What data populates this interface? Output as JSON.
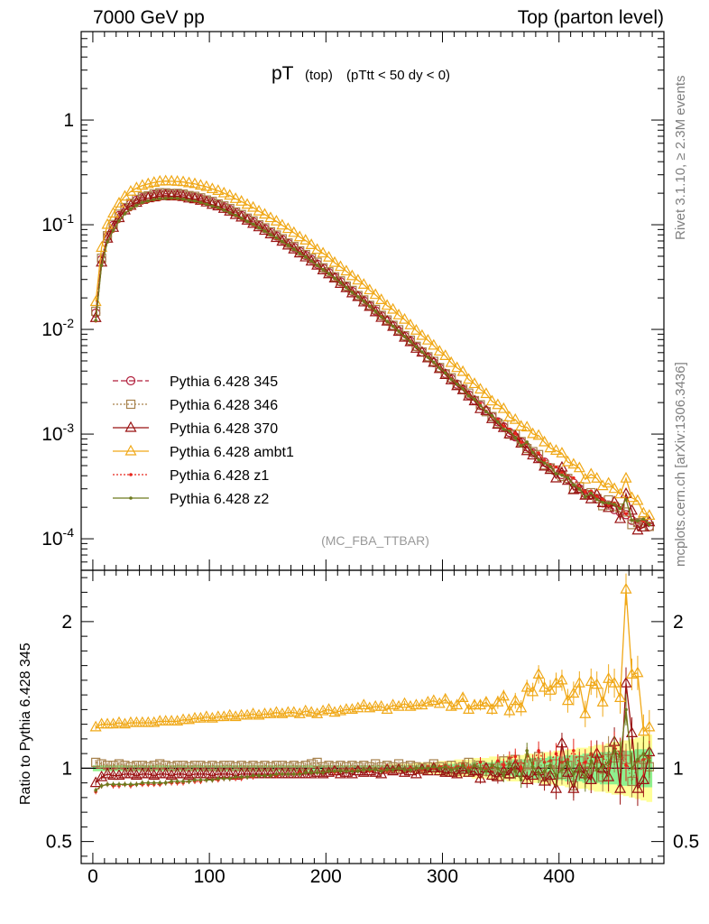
{
  "header": {
    "left": "7000 GeV pp",
    "right": "Top (parton level)"
  },
  "sidebar": {
    "rivet": "Rivet 3.1.10, ≥ 2.3M events",
    "mcplots": "mcplots.cern.ch [arXiv:1306.3436]"
  },
  "plot_title": {
    "main": "pT",
    "sub": "(top)",
    "cut": "(pTtt < 50 dy < 0)"
  },
  "analysis_label": "(MC_FBA_TTBAR)",
  "ratio_ylabel": "Ratio to Pythia 6.428 345",
  "colors": {
    "p345": "#b01e3b",
    "p346": "#a6804a",
    "p370": "#991212",
    "ambt1": "#f0a817",
    "z1": "#e8251c",
    "z2": "#6e7a1e",
    "band_inner": "#8ef08e",
    "band_outer": "#ffff99"
  },
  "chart_data": {
    "type": "line",
    "x_centers": [
      2.5,
      7.5,
      12.5,
      17.5,
      22.5,
      27.5,
      32.5,
      37.5,
      42.5,
      47.5,
      52.5,
      57.5,
      62.5,
      67.5,
      72.5,
      77.5,
      82.5,
      87.5,
      92.5,
      97.5,
      102.5,
      107.5,
      112.5,
      117.5,
      122.5,
      127.5,
      132.5,
      137.5,
      142.5,
      147.5,
      152.5,
      157.5,
      162.5,
      167.5,
      172.5,
      177.5,
      182.5,
      187.5,
      192.5,
      197.5,
      202.5,
      207.5,
      212.5,
      217.5,
      222.5,
      227.5,
      232.5,
      237.5,
      242.5,
      247.5,
      252.5,
      257.5,
      262.5,
      267.5,
      272.5,
      277.5,
      282.5,
      287.5,
      292.5,
      297.5,
      302.5,
      307.5,
      312.5,
      317.5,
      322.5,
      327.5,
      332.5,
      337.5,
      342.5,
      347.5,
      352.5,
      357.5,
      362.5,
      367.5,
      372.5,
      377.5,
      382.5,
      387.5,
      392.5,
      397.5,
      402.5,
      407.5,
      412.5,
      417.5,
      422.5,
      427.5,
      432.5,
      437.5,
      442.5,
      447.5,
      452.5,
      457.5,
      462.5,
      467.5,
      472.5,
      477.5
    ],
    "reference_series": "Pythia 6.428 345",
    "reference_values": [
      0.01432,
      0.04643,
      0.07698,
      0.09869,
      0.1223,
      0.1432,
      0.1584,
      0.1712,
      0.1808,
      0.187,
      0.1929,
      0.1963,
      0.1976,
      0.197,
      0.1957,
      0.1925,
      0.1881,
      0.1831,
      0.1772,
      0.1707,
      0.1638,
      0.1565,
      0.1483,
      0.1398,
      0.131,
      0.1226,
      0.1145,
      0.1066,
      0.09884,
      0.09152,
      0.08469,
      0.07816,
      0.072,
      0.06625,
      0.06074,
      0.05563,
      0.05098,
      0.0465,
      0.04216,
      0.03839,
      0.03482,
      0.03142,
      0.0285,
      0.02567,
      0.02311,
      0.02087,
      0.01875,
      0.01681,
      0.01508,
      0.01348,
      0.01206,
      0.01084,
      0.00963,
      0.00863,
      0.00774,
      0.00683,
      0.00609,
      0.00542,
      0.00481,
      0.00428,
      0.0038,
      0.00338,
      0.003,
      0.00266,
      0.00237,
      0.00211,
      0.00187,
      0.00167,
      0.00147,
      0.00131,
      0.00117,
      0.00104,
      0.00094,
      0.00084,
      0.00075,
      0.00066,
      0.00059,
      0.00054,
      0.00048,
      0.00044,
      0.00041,
      0.00037,
      0.00034,
      0.0003,
      0.00027,
      0.00026,
      0.00024,
      0.00022,
      0.00021,
      0.00019,
      0.00018,
      0.00017,
      0.00015,
      0.00014,
      0.00014,
      0.00013
    ],
    "ratio_band_inner": [
      0.02,
      0.02,
      0.02,
      0.02,
      0.02,
      0.02,
      0.02,
      0.02,
      0.02,
      0.02,
      0.02,
      0.02,
      0.02,
      0.02,
      0.02,
      0.02,
      0.02,
      0.02,
      0.02,
      0.02,
      0.02,
      0.02,
      0.02,
      0.02,
      0.02,
      0.02,
      0.02,
      0.02,
      0.02,
      0.02,
      0.02,
      0.02,
      0.02,
      0.02,
      0.02,
      0.02,
      0.02,
      0.02,
      0.02,
      0.02,
      0.02,
      0.02,
      0.02,
      0.02,
      0.02,
      0.02,
      0.02,
      0.02,
      0.02,
      0.02,
      0.02,
      0.02,
      0.02,
      0.02,
      0.02,
      0.02,
      0.02,
      0.02,
      0.02,
      0.02,
      0.03,
      0.03,
      0.03,
      0.03,
      0.03,
      0.04,
      0.04,
      0.04,
      0.04,
      0.05,
      0.05,
      0.05,
      0.06,
      0.06,
      0.06,
      0.07,
      0.07,
      0.07,
      0.08,
      0.08,
      0.08,
      0.09,
      0.09,
      0.09,
      0.1,
      0.1,
      0.1,
      0.11,
      0.11,
      0.11,
      0.12,
      0.12,
      0.12,
      0.13,
      0.13,
      0.13
    ],
    "ratio_band_outer": [
      0.02,
      0.02,
      0.02,
      0.02,
      0.02,
      0.02,
      0.02,
      0.02,
      0.02,
      0.02,
      0.02,
      0.02,
      0.02,
      0.02,
      0.02,
      0.02,
      0.02,
      0.02,
      0.02,
      0.02,
      0.02,
      0.02,
      0.02,
      0.02,
      0.02,
      0.02,
      0.02,
      0.02,
      0.02,
      0.02,
      0.02,
      0.02,
      0.02,
      0.02,
      0.02,
      0.02,
      0.02,
      0.02,
      0.02,
      0.02,
      0.02,
      0.02,
      0.02,
      0.02,
      0.02,
      0.02,
      0.02,
      0.02,
      0.02,
      0.02,
      0.03,
      0.03,
      0.03,
      0.03,
      0.03,
      0.04,
      0.04,
      0.04,
      0.04,
      0.05,
      0.05,
      0.05,
      0.06,
      0.06,
      0.06,
      0.07,
      0.07,
      0.07,
      0.08,
      0.08,
      0.08,
      0.09,
      0.09,
      0.09,
      0.1,
      0.1,
      0.1,
      0.11,
      0.11,
      0.12,
      0.12,
      0.13,
      0.13,
      0.14,
      0.14,
      0.15,
      0.16,
      0.16,
      0.17,
      0.18,
      0.18,
      0.19,
      0.2,
      0.21,
      0.22,
      0.23
    ],
    "series": [
      {
        "name": "Pythia 6.428 345",
        "key": "p345",
        "marker": "circle",
        "dash": "6,3",
        "ratio": [
          1.0,
          1.0,
          1.0,
          1.0,
          1.0,
          1.0,
          1.0,
          1.0,
          1.0,
          1.0,
          1.0,
          1.0,
          1.0,
          1.0,
          1.0,
          1.0,
          1.0,
          1.0,
          1.0,
          1.0,
          1.0,
          1.0,
          1.0,
          1.0,
          1.0,
          1.0,
          1.0,
          1.0,
          1.0,
          1.0,
          1.0,
          1.0,
          1.0,
          1.0,
          1.0,
          1.0,
          1.0,
          1.0,
          1.0,
          1.0,
          1.0,
          1.0,
          1.0,
          1.0,
          1.0,
          1.0,
          1.0,
          1.0,
          1.0,
          1.0,
          1.0,
          1.0,
          1.0,
          1.0,
          1.0,
          1.0,
          1.0,
          1.0,
          1.0,
          1.0,
          1.0,
          1.0,
          1.0,
          1.0,
          1.0,
          1.0,
          1.0,
          1.0,
          1.0,
          1.0,
          1.0,
          1.0,
          1.0,
          1.0,
          1.0,
          1.0,
          1.0,
          1.0,
          1.0,
          1.0,
          1.0,
          1.0,
          1.0,
          1.0,
          1.0,
          1.0,
          1.0,
          1.0,
          1.0,
          1.0,
          1.0,
          1.0,
          1.0,
          1.0,
          1.0,
          1.0
        ]
      },
      {
        "name": "Pythia 6.428 346",
        "key": "p346",
        "marker": "square",
        "dash": "2,2",
        "ratio": [
          1.04,
          1.03,
          1.02,
          1.02,
          1.03,
          1.02,
          1.01,
          1.02,
          1.02,
          1.01,
          1.02,
          1.03,
          1.02,
          1.01,
          1.02,
          1.02,
          1.01,
          1.02,
          1.02,
          1.01,
          1.02,
          1.01,
          1.02,
          1.02,
          1.01,
          1.02,
          1.01,
          1.02,
          1.01,
          1.02,
          1.01,
          1.02,
          1.02,
          1.01,
          1.02,
          1.01,
          1.02,
          1.03,
          1.04,
          1.01,
          1.02,
          1.01,
          1.02,
          1.01,
          1.02,
          1.01,
          1.02,
          1.01,
          1.03,
          1.01,
          1.02,
          1.01,
          1.03,
          1.01,
          1.02,
          1.01,
          1.0,
          1.01,
          1.03,
          1.01,
          0.99,
          1.02,
          0.98,
          1.01,
          1.04,
          0.99,
          1.02,
          0.98,
          1.0,
          0.97,
          1.05,
          0.96,
          1.06,
          1.01,
          0.97,
          1.03,
          1.08,
          0.94,
          0.99,
          1.03,
          0.96,
          1.02,
          0.88,
          1.05,
          0.98,
          1.06,
          1.01,
          0.94,
          1.12,
          1.07,
          1.09,
          1.06,
          0.91,
          1.02,
          1.06,
          1.01
        ]
      },
      {
        "name": "Pythia 6.428 370",
        "key": "p370",
        "marker": "triangle",
        "dash": "",
        "ratio": [
          0.9,
          0.94,
          0.96,
          0.95,
          0.95,
          0.96,
          0.96,
          0.95,
          0.96,
          0.96,
          0.95,
          0.96,
          0.96,
          0.95,
          0.96,
          0.96,
          0.95,
          0.96,
          0.96,
          0.96,
          0.95,
          0.96,
          0.96,
          0.96,
          0.95,
          0.96,
          0.96,
          0.96,
          0.96,
          0.96,
          0.96,
          0.96,
          0.96,
          0.96,
          0.96,
          0.96,
          0.96,
          0.96,
          0.97,
          0.96,
          0.97,
          0.98,
          0.96,
          0.97,
          0.96,
          0.98,
          0.97,
          0.98,
          0.97,
          0.96,
          0.99,
          0.98,
          0.99,
          0.97,
          0.98,
          0.96,
          0.99,
          0.98,
          1.0,
          0.98,
          0.97,
          0.97,
          0.96,
          0.99,
          0.97,
          0.98,
          0.93,
          1.0,
          0.95,
          0.94,
          0.98,
          0.96,
          1.02,
          0.97,
          0.92,
          0.95,
          0.98,
          0.91,
          0.95,
          0.86,
          1.17,
          0.97,
          0.86,
          1.0,
          0.96,
          0.92,
          1.1,
          1.0,
          0.94,
          1.18,
          0.86,
          1.58,
          1.24,
          0.86,
          0.92,
          1.11
        ]
      },
      {
        "name": "Pythia 6.428 ambt1",
        "key": "ambt1",
        "marker": "triangle",
        "dash": "",
        "ratio": [
          1.28,
          1.3,
          1.3,
          1.3,
          1.31,
          1.3,
          1.31,
          1.31,
          1.31,
          1.31,
          1.31,
          1.32,
          1.32,
          1.32,
          1.32,
          1.33,
          1.33,
          1.34,
          1.34,
          1.35,
          1.34,
          1.35,
          1.35,
          1.36,
          1.35,
          1.36,
          1.36,
          1.37,
          1.36,
          1.37,
          1.37,
          1.38,
          1.37,
          1.38,
          1.38,
          1.37,
          1.39,
          1.38,
          1.37,
          1.39,
          1.4,
          1.38,
          1.39,
          1.4,
          1.4,
          1.41,
          1.43,
          1.41,
          1.42,
          1.42,
          1.4,
          1.43,
          1.42,
          1.44,
          1.42,
          1.43,
          1.43,
          1.45,
          1.46,
          1.44,
          1.47,
          1.42,
          1.43,
          1.48,
          1.4,
          1.43,
          1.43,
          1.45,
          1.4,
          1.45,
          1.49,
          1.39,
          1.46,
          1.41,
          1.55,
          1.52,
          1.64,
          1.55,
          1.53,
          1.58,
          1.6,
          1.46,
          1.51,
          1.58,
          1.37,
          1.59,
          1.57,
          1.45,
          1.61,
          1.58,
          1.48,
          2.22,
          1.64,
          1.65,
          1.25,
          1.28
        ]
      },
      {
        "name": "Pythia 6.428 z1",
        "key": "z1",
        "marker": "dot",
        "dash": "2,2",
        "ratio": [
          0.84,
          0.88,
          0.89,
          0.88,
          0.88,
          0.89,
          0.88,
          0.89,
          0.89,
          0.89,
          0.89,
          0.89,
          0.9,
          0.9,
          0.9,
          0.9,
          0.91,
          0.91,
          0.91,
          0.92,
          0.92,
          0.92,
          0.93,
          0.93,
          0.93,
          0.93,
          0.94,
          0.94,
          0.95,
          0.95,
          0.95,
          0.95,
          0.96,
          0.96,
          0.96,
          0.97,
          0.97,
          0.97,
          0.97,
          0.97,
          0.98,
          0.97,
          0.98,
          0.98,
          0.99,
          0.98,
          0.99,
          0.98,
          0.99,
          0.99,
          0.98,
          0.99,
          1.0,
          0.99,
          1.0,
          1.0,
          0.99,
          1.01,
          1.0,
          1.01,
          1.02,
          1.0,
          1.01,
          1.03,
          1.0,
          1.02,
          1.04,
          0.99,
          1.01,
          1.05,
          1.02,
          1.07,
          1.08,
          1.0,
          1.09,
          1.03,
          1.12,
          1.04,
          1.05,
          1.1,
          1.04,
          1.06,
          1.12,
          1.03,
          1.04,
          1.1,
          1.05,
          1.08,
          1.0,
          1.15,
          1.1,
          1.02,
          1.0,
          1.05,
          1.06,
          1.07
        ]
      },
      {
        "name": "Pythia 6.428 z2",
        "key": "z2",
        "marker": "dot",
        "dash": "",
        "ratio": [
          0.85,
          0.88,
          0.89,
          0.89,
          0.89,
          0.89,
          0.89,
          0.89,
          0.9,
          0.9,
          0.9,
          0.9,
          0.9,
          0.91,
          0.91,
          0.91,
          0.91,
          0.92,
          0.92,
          0.92,
          0.92,
          0.93,
          0.93,
          0.93,
          0.94,
          0.94,
          0.94,
          0.95,
          0.95,
          0.95,
          0.95,
          0.96,
          0.96,
          0.96,
          0.96,
          0.96,
          0.97,
          0.97,
          0.97,
          0.97,
          0.98,
          0.98,
          0.98,
          0.98,
          0.98,
          0.98,
          0.99,
          0.99,
          0.99,
          0.98,
          0.99,
          0.99,
          1.0,
          0.99,
          0.99,
          1.0,
          1.0,
          1.0,
          1.01,
          1.0,
          1.01,
          0.99,
          1.0,
          1.02,
          0.98,
          1.02,
          1.0,
          0.98,
          1.02,
          1.0,
          0.95,
          1.03,
          0.98,
          0.92,
          1.12,
          1.01,
          0.96,
          0.98,
          1.02,
          0.95,
          0.99,
          1.04,
          0.96,
          1.0,
          0.93,
          1.05,
          0.99,
          1.01,
          1.04,
          1.12,
          1.08,
          1.4,
          1.0,
          1.06,
          1.1,
          1.05
        ]
      }
    ],
    "xlim": [
      -10,
      490
    ],
    "ylim_main": [
      5e-05,
      7
    ],
    "ylim_ratio": [
      0.35,
      2.35
    ],
    "main_yscale": "log",
    "main_y_ticklabels": [
      "10^{-4}",
      "10^{-3}",
      "10^{-2}",
      "10^{-1}",
      "1"
    ],
    "main_y_tickvalues": [
      0.0001,
      0.001,
      0.01,
      0.1,
      1
    ],
    "x_ticklabels": [
      "0",
      "100",
      "200",
      "300",
      "400"
    ],
    "x_tickvalues": [
      0,
      100,
      200,
      300,
      400
    ],
    "ratio_ticklabels": [
      "0.5",
      "1",
      "2"
    ],
    "ratio_tickvalues": [
      0.5,
      1,
      2
    ],
    "legend_position": "bottom-left"
  }
}
